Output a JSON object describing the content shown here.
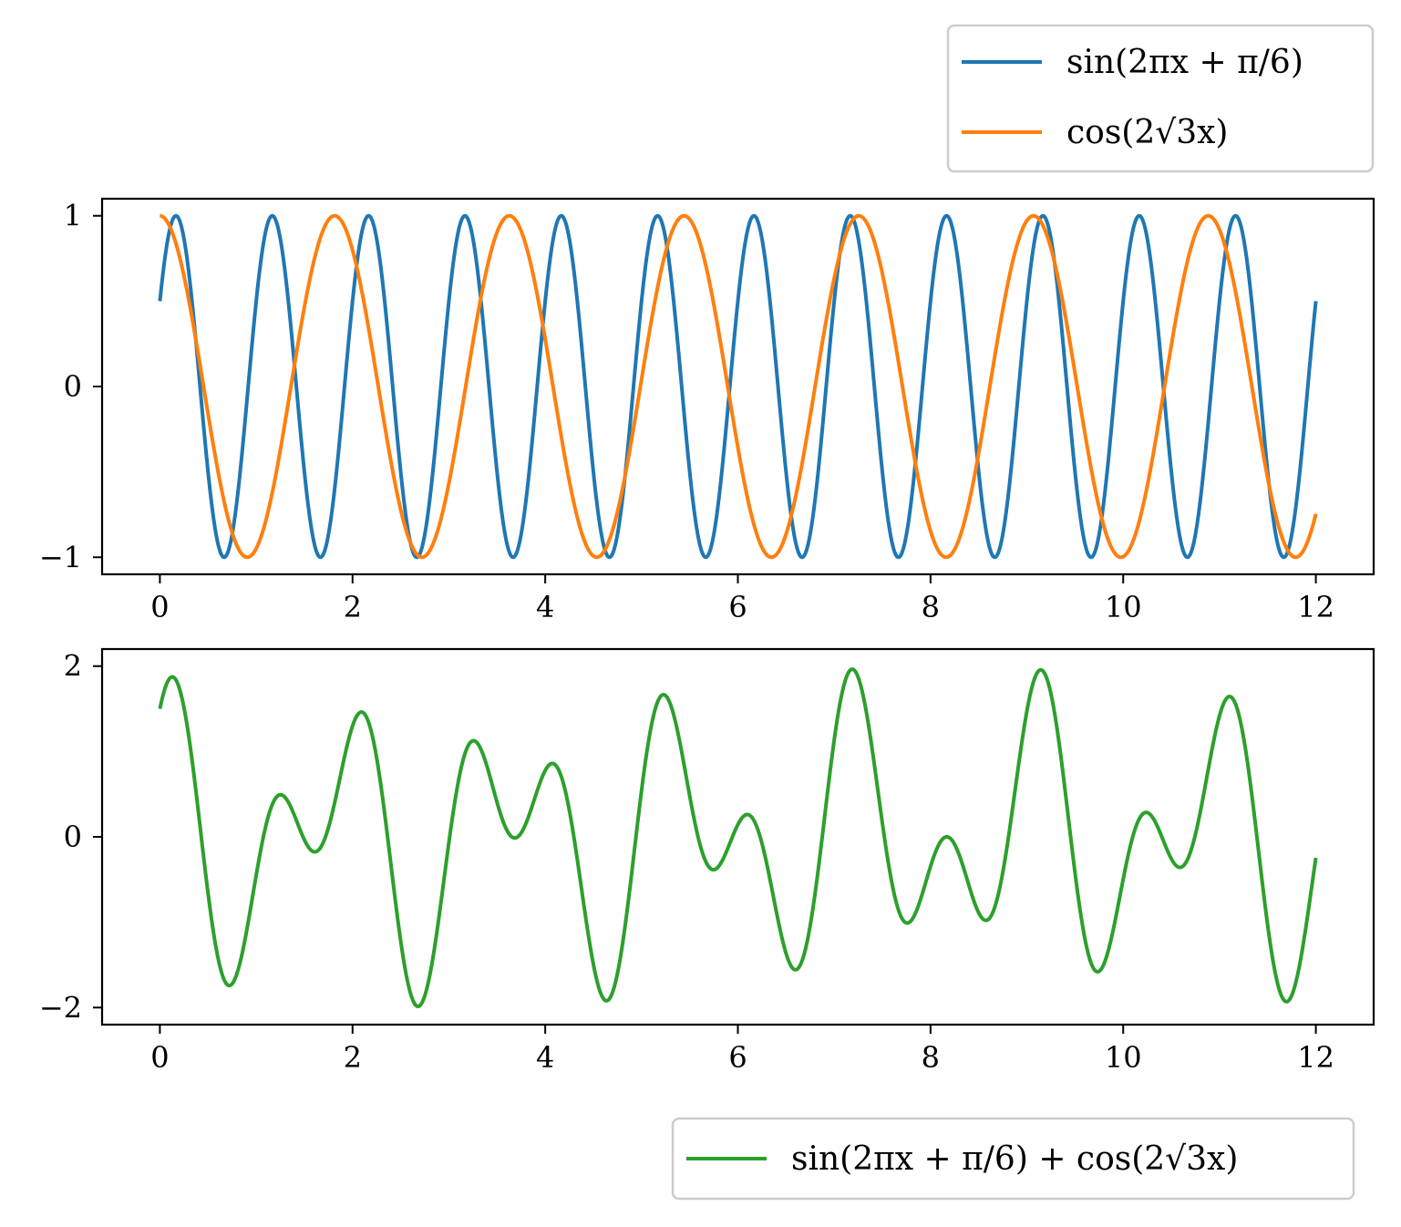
{
  "chart_data": [
    {
      "type": "line",
      "title": "",
      "xlabel": "",
      "ylabel": "",
      "xlim": [
        -0.6,
        12.6
      ],
      "ylim": [
        -1.1,
        1.1
      ],
      "x_range": [
        0,
        12
      ],
      "xticks": [
        0,
        2,
        4,
        6,
        8,
        10,
        12
      ],
      "xtick_labels": [
        "0",
        "2",
        "4",
        "6",
        "8",
        "10",
        "12"
      ],
      "yticks": [
        -1,
        0,
        1
      ],
      "ytick_labels": [
        "−1",
        "0",
        "1"
      ],
      "grid": false,
      "legend_placement": "above right",
      "series": [
        {
          "name": "sin(2πx + π/6)",
          "color": "#1f77b4",
          "expression": "sin(2*pi*x + pi/6)"
        },
        {
          "name": "cos(2√3x)",
          "color": "#ff7f0e",
          "expression": "cos(2*sqrt(3)*x)"
        }
      ]
    },
    {
      "type": "line",
      "title": "",
      "xlabel": "",
      "ylabel": "",
      "xlim": [
        -0.6,
        12.6
      ],
      "ylim": [
        -2.2,
        2.2
      ],
      "x_range": [
        0,
        12
      ],
      "xticks": [
        0,
        2,
        4,
        6,
        8,
        10,
        12
      ],
      "xtick_labels": [
        "0",
        "2",
        "4",
        "6",
        "8",
        "10",
        "12"
      ],
      "yticks": [
        -2,
        0,
        2
      ],
      "ytick_labels": [
        "−2",
        "0",
        "2"
      ],
      "grid": false,
      "legend_placement": "below right",
      "series": [
        {
          "name": "sin(2πx + π/6) + cos(2√3x)",
          "color": "#2ca02c",
          "expression": "sin(2*pi*x + pi/6) + cos(2*sqrt(3)*x)"
        }
      ]
    }
  ]
}
